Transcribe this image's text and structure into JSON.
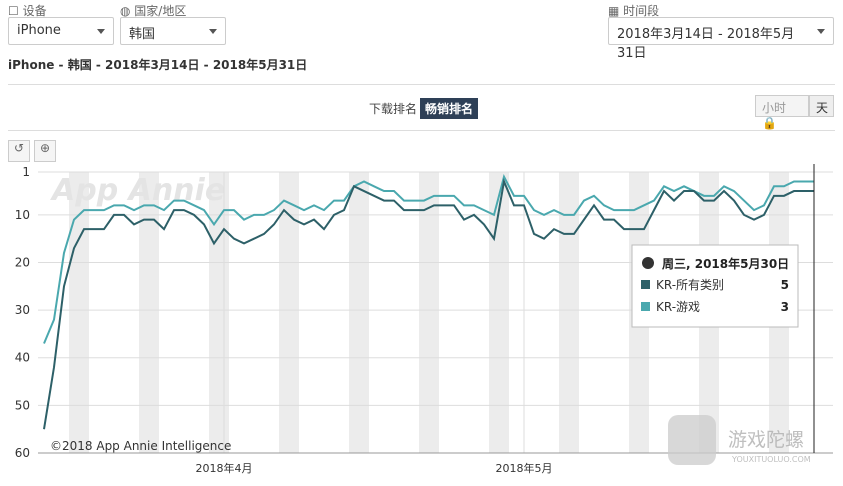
{
  "header": {
    "device_label": "设备",
    "device": "iPhone",
    "country_label": "国家/地区",
    "country": "韩国",
    "period_label": "时间段",
    "period": "2018年3月14日 - 2018年5月31日",
    "subtitle": "iPhone - 韩国 - 2018年3月14日 - 2018年5月31日",
    "tabs": [
      "下载排名",
      "畅销排名"
    ],
    "granularity": [
      "小时",
      "天"
    ]
  },
  "chart_data": {
    "type": "line",
    "watermark": "App Annie",
    "copyright": "©2018 App Annie Intelligence",
    "categories": [
      null,
      null,
      null,
      null,
      null,
      null,
      null,
      null,
      null,
      null,
      null,
      null,
      null,
      null,
      null,
      null,
      null,
      null,
      "2018年4月",
      null,
      null,
      null,
      null,
      null,
      null,
      null,
      null,
      null,
      null,
      null,
      null,
      null,
      null,
      null,
      null,
      null,
      null,
      null,
      null,
      null,
      null,
      null,
      null,
      null,
      null,
      null,
      null,
      null,
      "2018年5月",
      null,
      null,
      null,
      null,
      null,
      null,
      null,
      null,
      null,
      null,
      null,
      null,
      null,
      null,
      null,
      null,
      null,
      null,
      null,
      null,
      null,
      null,
      null,
      null,
      null,
      null,
      null,
      null,
      null,
      null
    ],
    "ylim": [
      60,
      1
    ],
    "yticks": [
      1,
      10,
      20,
      30,
      40,
      50,
      60
    ],
    "grid": true,
    "series": [
      {
        "name": "KR-所有类别",
        "color": "#2d6068",
        "values": [
          55,
          42,
          25,
          17,
          13,
          13,
          13,
          10,
          10,
          12,
          11,
          11,
          13,
          9,
          9,
          10,
          12,
          16,
          13,
          15,
          16,
          15,
          14,
          12,
          9,
          11,
          12,
          11,
          13,
          10,
          9,
          4,
          5,
          6,
          7,
          7,
          9,
          9,
          9,
          8,
          8,
          8,
          11,
          10,
          12,
          15,
          3,
          8,
          8,
          14,
          15,
          13,
          14,
          14,
          11,
          8,
          11,
          11,
          13,
          13,
          13,
          9,
          5,
          7,
          5,
          5,
          7,
          7,
          5,
          7,
          10,
          11,
          10,
          6,
          6,
          5,
          5,
          5,
          null
        ]
      },
      {
        "name": "KR-游戏",
        "color": "#4aa8ae",
        "values": [
          37,
          32,
          18,
          11,
          9,
          9,
          9,
          8,
          8,
          9,
          8,
          8,
          9,
          7,
          7,
          8,
          9,
          12,
          9,
          9,
          11,
          10,
          10,
          9,
          7,
          8,
          9,
          8,
          9,
          7,
          7,
          4,
          3,
          4,
          5,
          5,
          7,
          7,
          7,
          6,
          6,
          6,
          8,
          8,
          9,
          10,
          2,
          6,
          6,
          9,
          10,
          9,
          10,
          10,
          7,
          6,
          8,
          9,
          9,
          9,
          8,
          7,
          4,
          5,
          4,
          5,
          6,
          6,
          4,
          5,
          7,
          9,
          8,
          4,
          4,
          3,
          3,
          3,
          null
        ]
      }
    ],
    "tooltip": {
      "title": "周三, 2018年5月30日",
      "index": 77
    }
  },
  "logo": {
    "name": "游戏陀螺",
    "url": "YOUXITUOLUO.COM"
  }
}
